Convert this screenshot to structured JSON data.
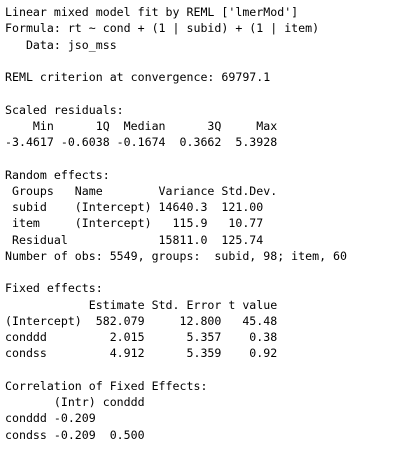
{
  "output": {
    "header": {
      "title": "Linear mixed model fit by REML ['lmerMod']",
      "formula": "Formula: rt ~ cond + (1 | subid) + (1 | item)",
      "data": "   Data: jso_mss"
    },
    "reml": "REML criterion at convergence: 69797.1",
    "scaled_residuals": {
      "heading": "Scaled residuals:",
      "header_row": "    Min      1Q  Median      3Q     Max",
      "values_row": "-3.4617 -0.6038 -0.1674  0.3662  5.3928"
    },
    "random_effects": {
      "heading": "Random effects:",
      "rows": [
        " Groups   Name        Variance Std.Dev.",
        " subid    (Intercept) 14640.3  121.00  ",
        " item     (Intercept)   115.9   10.77  ",
        " Residual             15811.0  125.74  "
      ],
      "nobs": "Number of obs: 5549, groups:  subid, 98; item, 60"
    },
    "fixed_effects": {
      "heading": "Fixed effects:",
      "rows": [
        "            Estimate Std. Error t value",
        "(Intercept)  582.079     12.800   45.48",
        "condd d        2.015      5.357    0.38",
        "condss         4.912      5.359    0.92"
      ]
    },
    "correlation": {
      "heading": "Correlation of Fixed Effects:",
      "rows": [
        "       (Intr) conddd",
        "conddd -0.209       ",
        "condss -0.209  0.500"
      ]
    }
  }
}
